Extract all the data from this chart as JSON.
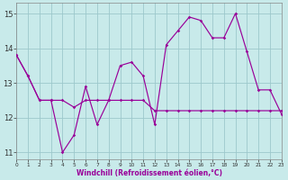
{
  "xlabel": "Windchill (Refroidissement éolien,°C)",
  "bg_color": "#c8eaea",
  "grid_color": "#9cc8cc",
  "line_color": "#990099",
  "xlim_min": 0,
  "xlim_max": 23,
  "ylim_min": 10.8,
  "ylim_max": 15.3,
  "xtick_labels": [
    "0",
    "1",
    "2",
    "3",
    "4",
    "5",
    "6",
    "7",
    "8",
    "9",
    "10",
    "11",
    "12",
    "13",
    "14",
    "15",
    "16",
    "17",
    "18",
    "19",
    "20",
    "21",
    "22",
    "23"
  ],
  "ytick_labels": [
    "11",
    "12",
    "13",
    "14",
    "15"
  ],
  "ytick_vals": [
    11,
    12,
    13,
    14,
    15
  ],
  "line1_x": [
    0,
    1,
    2,
    3,
    4,
    5,
    6,
    7,
    8,
    9,
    10,
    11,
    12,
    13,
    14,
    15,
    16,
    17,
    18,
    19,
    20,
    21,
    22,
    23
  ],
  "line1_y": [
    13.8,
    13.2,
    12.5,
    12.5,
    12.5,
    12.3,
    12.5,
    12.5,
    12.5,
    12.5,
    12.5,
    12.5,
    12.2,
    12.2,
    12.2,
    12.2,
    12.2,
    12.2,
    12.2,
    12.2,
    12.2,
    12.2,
    12.2,
    12.2
  ],
  "line2_x": [
    0,
    1,
    2,
    3,
    4,
    5,
    6,
    7,
    8,
    9,
    10,
    11,
    12,
    13,
    14,
    15,
    16,
    17,
    18,
    19,
    20,
    21,
    22,
    23
  ],
  "line2_y": [
    13.8,
    13.2,
    12.5,
    12.5,
    11.0,
    11.5,
    12.9,
    11.8,
    12.5,
    13.5,
    13.6,
    13.2,
    11.8,
    14.1,
    14.5,
    14.9,
    14.8,
    14.3,
    14.3,
    15.0,
    13.9,
    12.8,
    12.8,
    12.1
  ]
}
